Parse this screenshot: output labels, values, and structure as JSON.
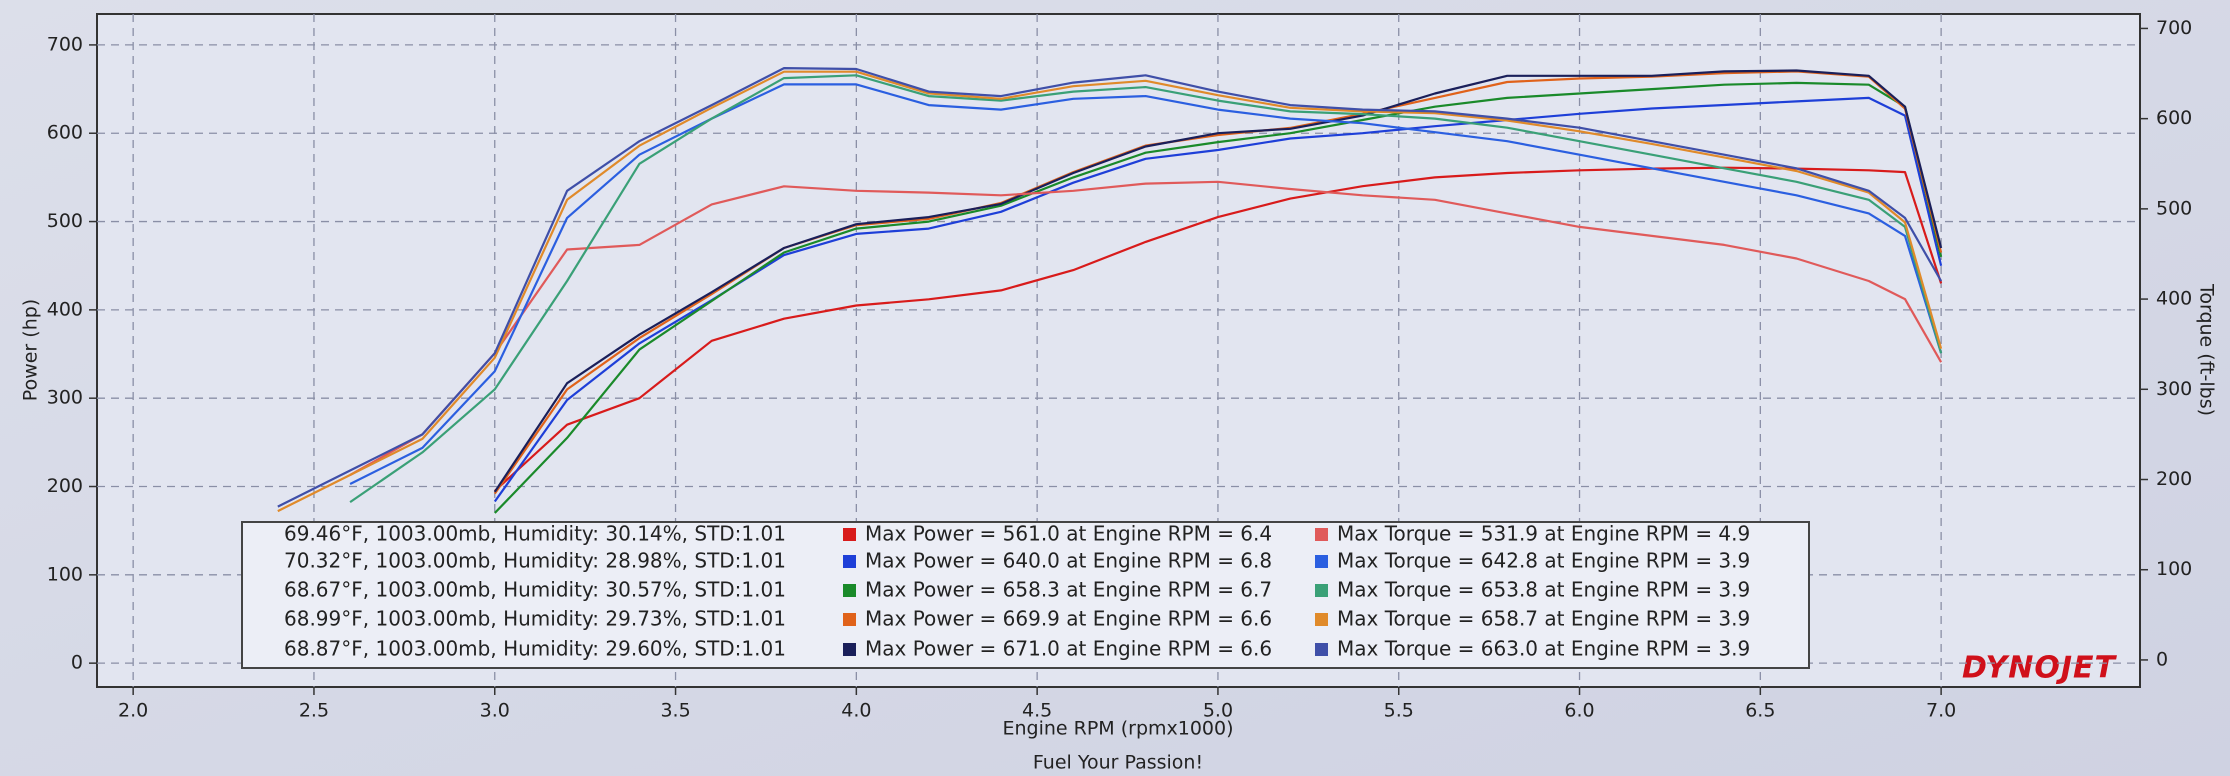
{
  "chart_data": {
    "type": "line",
    "y_label": "Power (hp)",
    "y2_label": "Torque (ft-lbs)",
    "x_label": "Engine RPM (rpmx1000)",
    "footer": "Fuel Your Passion!",
    "logo": "DYNOJET",
    "grid": true,
    "xlim": [
      1.9,
      7.55
    ],
    "ylim": [
      -27,
      735
    ],
    "y2lim": [
      -30,
      716
    ],
    "xticks": [
      {
        "value": 2,
        "label": "2.0"
      },
      2.5,
      {
        "value": 3,
        "label": "3.0"
      },
      3.5,
      {
        "value": 4,
        "label": "4.0"
      },
      4.5,
      {
        "value": 5,
        "label": "5.0"
      },
      5.5,
      {
        "value": 6,
        "label": "6.0"
      },
      6.5,
      {
        "value": 7,
        "label": "7.0"
      }
    ],
    "yticks": [
      0,
      100,
      200,
      300,
      400,
      500,
      600,
      700
    ],
    "y2ticks": [
      0,
      100,
      200,
      300,
      400,
      500,
      600,
      700
    ],
    "run_conditions": [
      "69.46°F, 1003.00mb, Humidity: 30.14%, STD:1.01",
      "70.32°F, 1003.00mb, Humidity: 28.98%, STD:1.01",
      "68.67°F, 1003.00mb, Humidity: 30.57%, STD:1.01",
      "68.99°F, 1003.00mb, Humidity: 29.73%, STD:1.01",
      "68.87°F, 1003.00mb, Humidity: 29.60%, STD:1.01"
    ],
    "x": [
      2.4,
      2.6,
      2.8,
      3.0,
      3.2,
      3.4,
      3.6,
      3.8,
      4.0,
      4.2,
      4.4,
      4.6,
      4.8,
      5.0,
      5.2,
      5.4,
      5.6,
      5.8,
      6.0,
      6.2,
      6.4,
      6.6,
      6.8,
      6.9,
      7.0
    ],
    "series": [
      {
        "name": "Max Power = 561.0 at Engine RPM = 6.4",
        "color": "#d81b1b",
        "values": [
          null,
          null,
          null,
          195,
          270,
          300,
          365,
          390,
          405,
          412,
          422,
          445,
          477,
          505,
          526,
          540,
          550,
          555,
          558,
          560,
          561,
          560,
          558,
          556,
          430
        ]
      },
      {
        "name": "Max Power = 640.0 at Engine RPM = 6.8",
        "color": "#1e3fd8",
        "values": [
          null,
          null,
          null,
          183,
          298,
          362,
          411,
          462,
          486,
          492,
          511,
          544,
          571,
          581,
          594,
          600,
          608,
          615,
          622,
          628,
          632,
          636,
          640,
          620,
          450
        ]
      },
      {
        "name": "Max Power = 658.3 at Engine RPM = 6.7",
        "color": "#1a8a2a",
        "values": [
          null,
          null,
          null,
          170,
          255,
          355,
          410,
          465,
          492,
          500,
          518,
          550,
          578,
          590,
          600,
          615,
          630,
          640,
          645,
          650,
          655,
          657,
          655,
          630,
          460
        ]
      },
      {
        "name": "Max Power = 669.9 at Engine RPM = 6.6",
        "color": "#e0621a",
        "values": [
          null,
          null,
          null,
          192,
          310,
          368,
          418,
          470,
          496,
          503,
          521,
          556,
          586,
          598,
          606,
          622,
          640,
          658,
          662,
          664,
          668,
          670,
          664,
          628,
          465
        ]
      },
      {
        "name": "Max Power = 671.0 at Engine RPM = 6.6",
        "color": "#1a1f5a",
        "values": [
          null,
          null,
          null,
          194,
          317,
          372,
          420,
          470,
          497,
          505,
          520,
          555,
          585,
          600,
          605,
          620,
          645,
          665,
          665,
          665,
          670,
          671,
          665,
          630,
          470
        ]
      },
      {
        "name": "Max Torque = 531.9 at Engine RPM = 4.9",
        "color": "#e05a5a",
        "axis": "y2",
        "values": [
          null,
          205,
          250,
          340,
          455,
          460,
          505,
          525,
          520,
          518,
          515,
          520,
          528,
          530,
          522,
          515,
          510,
          495,
          480,
          470,
          460,
          445,
          420,
          400,
          330
        ]
      },
      {
        "name": "Max Torque = 642.8 at Engine RPM = 3.9",
        "color": "#2b5fe0",
        "axis": "y2",
        "values": [
          null,
          195,
          235,
          320,
          490,
          560,
          600,
          638,
          638,
          615,
          610,
          622,
          625,
          610,
          600,
          595,
          585,
          575,
          560,
          545,
          530,
          515,
          495,
          470,
          340
        ]
      },
      {
        "name": "Max Torque = 653.8 at Engine RPM = 3.9",
        "color": "#3aa077",
        "axis": "y2",
        "values": [
          null,
          175,
          230,
          300,
          420,
          550,
          600,
          645,
          648,
          625,
          620,
          630,
          635,
          620,
          608,
          605,
          600,
          590,
          575,
          560,
          545,
          530,
          510,
          480,
          340
        ]
      },
      {
        "name": "Max Torque = 658.7 at Engine RPM = 3.9",
        "color": "#e08a2a",
        "axis": "y2",
        "values": [
          165,
          205,
          245,
          335,
          510,
          570,
          612,
          652,
          652,
          628,
          622,
          636,
          642,
          626,
          612,
          608,
          606,
          598,
          586,
          572,
          557,
          542,
          518,
          485,
          345
        ]
      },
      {
        "name": "Max Torque = 663.0 at Engine RPM = 3.9",
        "color": "#3f4fa8",
        "axis": "y2",
        "values": [
          170,
          210,
          250,
          340,
          520,
          575,
          615,
          656,
          655,
          630,
          625,
          640,
          648,
          630,
          615,
          610,
          608,
          600,
          590,
          575,
          560,
          545,
          520,
          490,
          420
        ]
      }
    ]
  }
}
